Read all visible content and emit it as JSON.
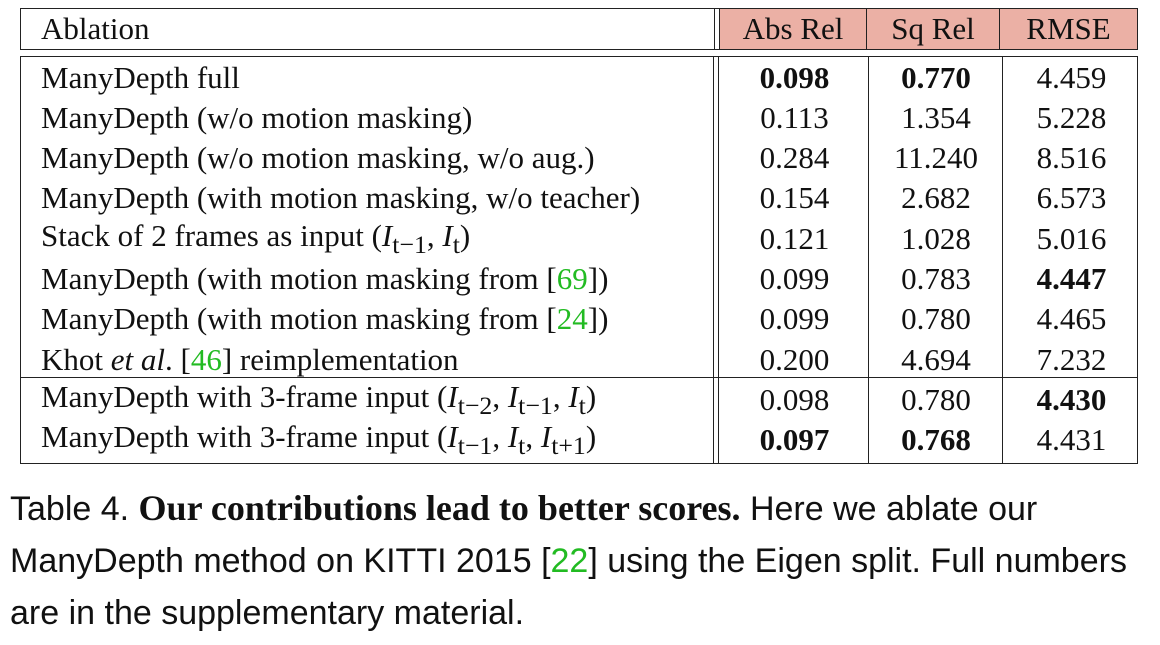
{
  "table": {
    "headers": [
      "Ablation",
      "Abs Rel",
      "Sq Rel",
      "RMSE"
    ],
    "rows": [
      {
        "name": "ManyDepth full",
        "abs_rel": "0.098",
        "sq_rel": "0.770",
        "rmse": "4.459",
        "bold": [
          "abs_rel",
          "sq_rel"
        ]
      },
      {
        "name": "ManyDepth (w/o motion masking)",
        "abs_rel": "0.113",
        "sq_rel": "1.354",
        "rmse": "5.228",
        "bold": []
      },
      {
        "name": "ManyDepth (w/o motion masking, w/o aug.)",
        "abs_rel": "0.284",
        "sq_rel": "11.240",
        "rmse": "8.516",
        "bold": []
      },
      {
        "name": "ManyDepth (with motion masking, w/o teacher)",
        "abs_rel": "0.154",
        "sq_rel": "2.682",
        "rmse": "6.573",
        "bold": []
      },
      {
        "name_html": "Stack of 2 frames as input (<i>I</i><sub>t−1</sub>, <i>I</i><sub>t</sub>)",
        "abs_rel": "0.121",
        "sq_rel": "1.028",
        "rmse": "5.016",
        "bold": []
      },
      {
        "name_html": "ManyDepth (with motion masking from [<span class=\"cite\">69</span>])",
        "abs_rel": "0.099",
        "sq_rel": "0.783",
        "rmse": "4.447",
        "bold": [
          "rmse"
        ]
      },
      {
        "name_html": "ManyDepth (with motion masking from [<span class=\"cite\">24</span>])",
        "abs_rel": "0.099",
        "sq_rel": "0.780",
        "rmse": "4.465",
        "bold": []
      },
      {
        "name_html": "Khot <i>et al</i>. [<span class=\"cite\">46</span>] reimplementation",
        "abs_rel": "0.200",
        "sq_rel": "4.694",
        "rmse": "7.232",
        "bold": []
      },
      {
        "name_html": "ManyDepth with 3-frame input (<i>I</i><sub>t−2</sub>, <i>I</i><sub>t−1</sub>, <i>I</i><sub>t</sub>)",
        "abs_rel": "0.098",
        "sq_rel": "0.780",
        "rmse": "4.430",
        "bold": [
          "rmse"
        ]
      },
      {
        "name_html": "ManyDepth with 3-frame input (<i>I</i><sub>t−1</sub>, <i>I</i><sub>t</sub>, <i>I</i><sub>t+1</sub>)",
        "abs_rel": "0.097",
        "sq_rel": "0.768",
        "rmse": "4.431",
        "bold": [
          "abs_rel",
          "sq_rel"
        ]
      }
    ]
  },
  "caption": {
    "label": "Table 4.",
    "lead": "Our contributions lead to better scores.",
    "text_before_cite": " Here we ablate our ManyDepth method on KITTI 2015 [",
    "cite": "22",
    "text_after_cite": "] using the Eigen split. Full numbers are in the supplementary material."
  },
  "colors": {
    "header_metric_bg": "#ebb0a5",
    "citation": "#22bb22"
  }
}
